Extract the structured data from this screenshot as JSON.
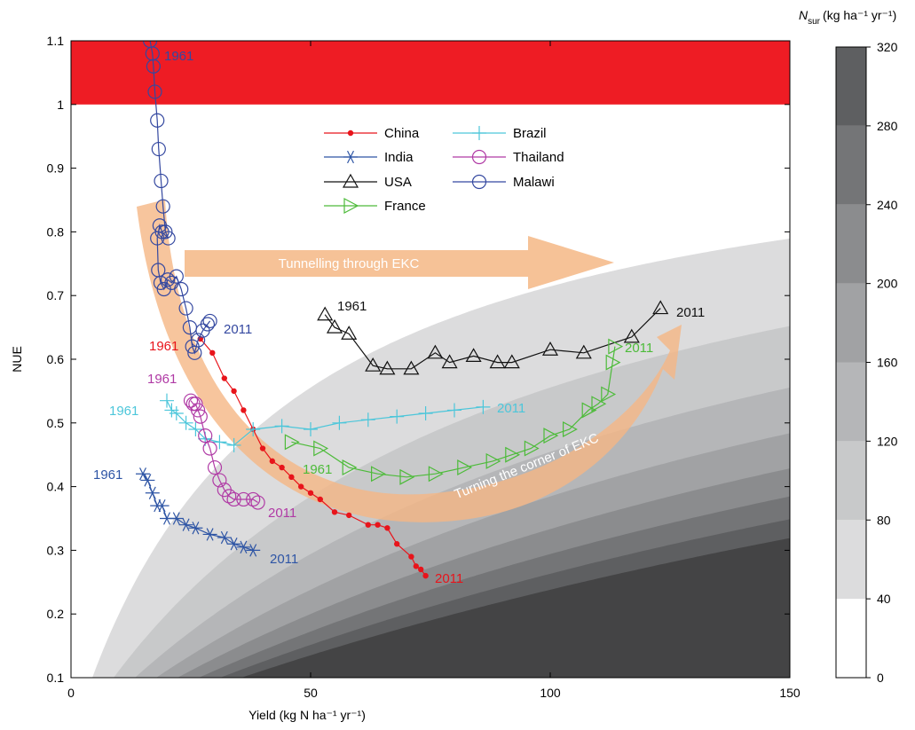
{
  "chart_data": {
    "type": "line",
    "xlabel": "Yield (kg N ha⁻¹ yr⁻¹)",
    "ylabel": "NUE",
    "xlim": [
      0,
      150
    ],
    "ylim": [
      0.1,
      1.1
    ],
    "xticks": [
      "0",
      "50",
      "100",
      "150"
    ],
    "yticks": [
      "0.1",
      "0.2",
      "0.3",
      "0.4",
      "0.5",
      "0.6",
      "0.7",
      "0.8",
      "0.9",
      "1",
      "1.1"
    ],
    "legend_placement": "top-center",
    "colors": {
      "China": "#e8141b",
      "India": "#2e55a5",
      "USA": "#111111",
      "France": "#4dbb3a",
      "Brazil": "#4cc6da",
      "Thailand": "#b03aa5",
      "Malawi": "#3448a0",
      "red_band": "#ee1c24",
      "arrow": "#f5b785"
    },
    "series": [
      {
        "name": "China",
        "marker": "dot",
        "start_label": "1961",
        "end_label": "2011",
        "x": [
          27,
          29.5,
          32,
          34,
          36,
          38,
          40,
          42,
          44,
          46,
          48,
          50,
          52,
          55,
          58,
          62,
          64,
          66,
          68,
          71,
          72,
          73,
          74
        ],
        "y": [
          0.632,
          0.61,
          0.57,
          0.55,
          0.52,
          0.49,
          0.46,
          0.44,
          0.43,
          0.415,
          0.4,
          0.39,
          0.38,
          0.36,
          0.355,
          0.34,
          0.34,
          0.335,
          0.31,
          0.29,
          0.275,
          0.27,
          0.26
        ]
      },
      {
        "name": "India",
        "marker": "asterisk",
        "start_label": "1961",
        "end_label": "2011",
        "x": [
          15,
          16,
          17,
          18,
          19,
          20,
          22,
          24,
          26,
          29,
          32,
          34,
          36,
          38
        ],
        "y": [
          0.42,
          0.41,
          0.39,
          0.37,
          0.37,
          0.35,
          0.35,
          0.34,
          0.335,
          0.325,
          0.32,
          0.31,
          0.305,
          0.3
        ]
      },
      {
        "name": "USA",
        "marker": "triangle",
        "start_label": "1961",
        "end_label": "2011",
        "x": [
          53,
          55,
          58,
          63,
          66,
          71,
          76,
          79,
          84,
          89,
          92,
          100,
          107,
          117,
          123
        ],
        "y": [
          0.67,
          0.65,
          0.64,
          0.59,
          0.585,
          0.585,
          0.61,
          0.595,
          0.605,
          0.595,
          0.595,
          0.615,
          0.61,
          0.635,
          0.68
        ]
      },
      {
        "name": "France",
        "marker": "triangle-right",
        "start_label": "1961",
        "end_label": "2011",
        "x": [
          46,
          52,
          58,
          64,
          70,
          76,
          82,
          88,
          92,
          96,
          100,
          104,
          108,
          110,
          112,
          113,
          113.5
        ],
        "y": [
          0.47,
          0.46,
          0.43,
          0.42,
          0.415,
          0.42,
          0.43,
          0.44,
          0.45,
          0.46,
          0.48,
          0.49,
          0.52,
          0.53,
          0.545,
          0.595,
          0.62
        ]
      },
      {
        "name": "Brazil",
        "marker": "plus",
        "start_label": "1961",
        "end_label": "2011",
        "x": [
          20,
          21,
          22,
          24,
          26,
          28,
          31,
          34,
          38,
          44,
          50,
          56,
          62,
          68,
          74,
          80,
          86
        ],
        "y": [
          0.535,
          0.52,
          0.515,
          0.5,
          0.49,
          0.475,
          0.47,
          0.465,
          0.49,
          0.495,
          0.49,
          0.5,
          0.505,
          0.51,
          0.515,
          0.52,
          0.525
        ]
      },
      {
        "name": "Thailand",
        "marker": "circle",
        "start_label": "1961",
        "end_label": "2011",
        "x": [
          25,
          25.5,
          26,
          26.5,
          27,
          28,
          29,
          30,
          31,
          32,
          33,
          34,
          36,
          38,
          39
        ],
        "y": [
          0.535,
          0.53,
          0.53,
          0.52,
          0.51,
          0.48,
          0.46,
          0.43,
          0.41,
          0.395,
          0.385,
          0.38,
          0.38,
          0.38,
          0.375
        ]
      },
      {
        "name": "Malawi",
        "marker": "circle",
        "start_label": "1961",
        "end_label": "2011",
        "x": [
          16.5,
          17,
          17.2,
          17.5,
          18,
          18.3,
          18.8,
          19.2,
          19.7,
          20.3,
          19,
          18.5,
          18,
          18.2,
          18.7,
          19.4,
          20.2,
          21,
          22,
          23,
          24,
          24.8,
          25.3,
          25.8,
          26.5,
          27.5,
          28.5,
          29
        ],
        "y": [
          1.1,
          1.08,
          1.06,
          1.02,
          0.975,
          0.93,
          0.88,
          0.84,
          0.8,
          0.79,
          0.8,
          0.81,
          0.79,
          0.74,
          0.72,
          0.71,
          0.725,
          0.72,
          0.73,
          0.71,
          0.68,
          0.65,
          0.62,
          0.61,
          0.63,
          0.645,
          0.655,
          0.66
        ]
      }
    ],
    "shading": {
      "title": "N",
      "title_subscript": "sur",
      "unit": "(kg ha⁻¹ yr⁻¹)",
      "levels": [
        0,
        40,
        80,
        120,
        160,
        200,
        240,
        280,
        320
      ],
      "level_labels": [
        "0",
        "40",
        "80",
        "120",
        "160",
        "200",
        "240",
        "280",
        "320"
      ],
      "fills": [
        "#ffffff",
        "#dcdcdd",
        "#c8c9ca",
        "#b5b6b8",
        "#a1a2a4",
        "#8b8c8e",
        "#747577",
        "#5e5f61",
        "#444445"
      ]
    },
    "red_band": {
      "y_from": 1.0,
      "y_to": 1.1
    },
    "annotations": {
      "arrow_top": "Tunnelling through EKC",
      "arrow_curve": "Turning the corner of EKC"
    }
  }
}
